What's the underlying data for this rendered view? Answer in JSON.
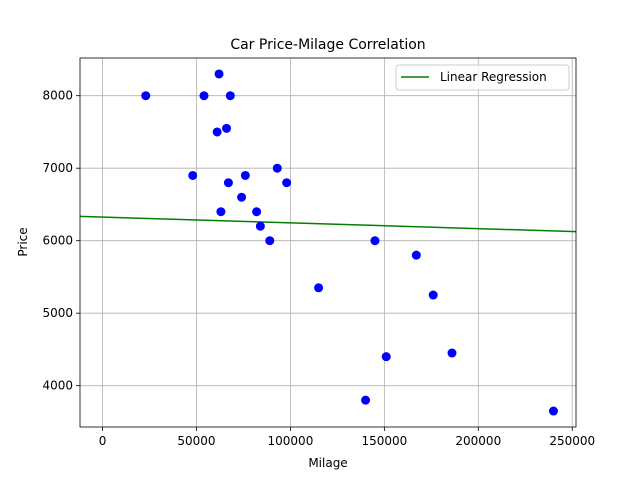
{
  "chart_data": {
    "type": "scatter",
    "title": "Car Price-Milage Correlation",
    "xlabel": "Milage",
    "ylabel": "Price",
    "xlim": [
      -12000,
      252000
    ],
    "ylim": [
      3430,
      8520
    ],
    "xticks": [
      0,
      50000,
      100000,
      150000,
      200000,
      250000
    ],
    "yticks": [
      4000,
      5000,
      6000,
      7000,
      8000
    ],
    "grid": true,
    "legend": {
      "placement": "top-right",
      "entries": [
        "Linear Regression"
      ]
    },
    "series": [
      {
        "kind": "scatter",
        "color": "#0000ff",
        "points": [
          [
            23000,
            8000
          ],
          [
            54000,
            8000
          ],
          [
            62000,
            8300
          ],
          [
            68000,
            8000
          ],
          [
            61000,
            7500
          ],
          [
            66000,
            7550
          ],
          [
            93000,
            7000
          ],
          [
            48000,
            6900
          ],
          [
            67000,
            6800
          ],
          [
            76000,
            6900
          ],
          [
            98000,
            6800
          ],
          [
            74000,
            6600
          ],
          [
            63000,
            6400
          ],
          [
            82000,
            6400
          ],
          [
            84000,
            6200
          ],
          [
            89000,
            6000
          ],
          [
            145000,
            6000
          ],
          [
            167000,
            5800
          ],
          [
            115000,
            5350
          ],
          [
            176000,
            5250
          ],
          [
            151000,
            4400
          ],
          [
            186000,
            4450
          ],
          [
            140000,
            3800
          ],
          [
            240000,
            3650
          ]
        ]
      },
      {
        "kind": "line",
        "name": "Linear Regression",
        "color": "#008000",
        "x": [
          -12000,
          252000
        ],
        "y": [
          6335,
          6125
        ]
      }
    ]
  }
}
